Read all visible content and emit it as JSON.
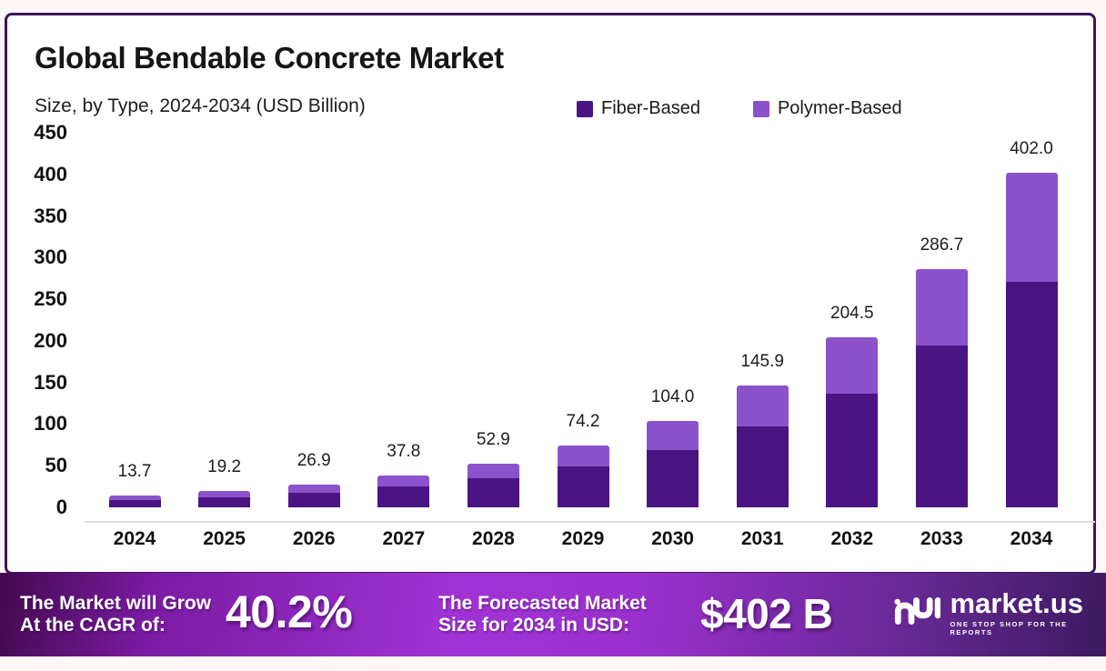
{
  "title": "Global Bendable Concrete Market",
  "subtitle": "Size, by Type, 2024-2034 (USD Billion)",
  "legend": [
    {
      "label": "Fiber-Based",
      "color": "#4a1582"
    },
    {
      "label": "Polymer-Based",
      "color": "#8c52cc"
    }
  ],
  "chart_data": {
    "type": "bar",
    "stacked": true,
    "categories": [
      "2024",
      "2025",
      "2026",
      "2027",
      "2028",
      "2029",
      "2030",
      "2031",
      "2032",
      "2033",
      "2034"
    ],
    "series": [
      {
        "name": "Fiber-Based",
        "color": "#4a1582",
        "values": [
          8.9,
          12.5,
          17.6,
          24.8,
          34.5,
          48.8,
          68.8,
          97.2,
          136.4,
          194.3,
          271.0
        ]
      },
      {
        "name": "Polymer-Based",
        "color": "#8c52cc",
        "values": [
          4.8,
          6.7,
          9.3,
          13.0,
          18.4,
          25.4,
          35.2,
          48.7,
          68.1,
          92.4,
          131.0
        ]
      }
    ],
    "totals": [
      13.7,
      19.2,
      26.9,
      37.8,
      52.9,
      74.2,
      104.0,
      145.9,
      204.5,
      286.7,
      402.0
    ],
    "total_labels": [
      "13.7",
      "19.2",
      "26.9",
      "37.8",
      "52.9",
      "74.2",
      "104.0",
      "145.9",
      "204.5",
      "286.7",
      "402.0"
    ],
    "ylabel": "",
    "xlabel": "",
    "ylim": [
      0,
      450
    ],
    "yticks": [
      0,
      50,
      100,
      150,
      200,
      250,
      300,
      350,
      400,
      450
    ],
    "grid": false,
    "legend_position": "top-right"
  },
  "footer": {
    "cagr_label": "The Market will Grow\nAt the CAGR of:",
    "cagr_value": "40.2%",
    "forecast_label": "The Forecasted Market\nSize for 2034 in USD:",
    "forecast_value": "$402 B",
    "brand": {
      "name": "market.us",
      "tagline": "ONE STOP SHOP FOR THE REPORTS"
    }
  }
}
